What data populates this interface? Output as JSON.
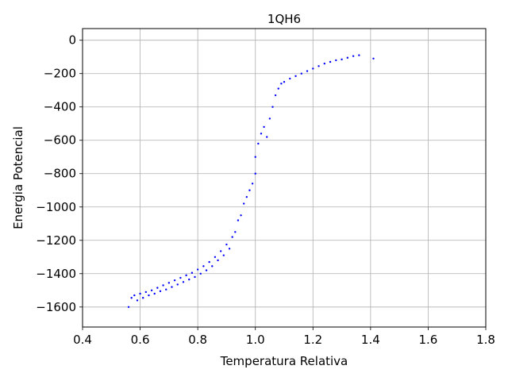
{
  "chart_data": {
    "type": "scatter",
    "title": "1QH6",
    "xlabel": "Temperatura Relativa",
    "ylabel": "Energia Potencial",
    "xlim": [
      0.4,
      1.8
    ],
    "ylim": [
      -1720,
      70
    ],
    "xticks": [
      0.4,
      0.6,
      0.8,
      1.0,
      1.2,
      1.4,
      1.6,
      1.8
    ],
    "xtick_labels": [
      "0.4",
      "0.6",
      "0.8",
      "1.0",
      "1.2",
      "1.4",
      "1.6",
      "1.8"
    ],
    "yticks": [
      0,
      -200,
      -400,
      -600,
      -800,
      -1000,
      -1200,
      -1400,
      -1600
    ],
    "ytick_labels": [
      "0",
      "−200",
      "−400",
      "−600",
      "−800",
      "−1000",
      "−1200",
      "−1400",
      "−1600"
    ],
    "grid": true,
    "marker_color": "#0000ff",
    "series": [
      {
        "points": [
          [
            0.56,
            -1600
          ],
          [
            0.57,
            -1545
          ],
          [
            0.58,
            -1530
          ],
          [
            0.59,
            -1560
          ],
          [
            0.6,
            -1520
          ],
          [
            0.61,
            -1545
          ],
          [
            0.62,
            -1510
          ],
          [
            0.63,
            -1530
          ],
          [
            0.64,
            -1500
          ],
          [
            0.65,
            -1520
          ],
          [
            0.66,
            -1485
          ],
          [
            0.67,
            -1505
          ],
          [
            0.68,
            -1470
          ],
          [
            0.69,
            -1495
          ],
          [
            0.7,
            -1455
          ],
          [
            0.71,
            -1480
          ],
          [
            0.72,
            -1440
          ],
          [
            0.73,
            -1465
          ],
          [
            0.74,
            -1425
          ],
          [
            0.75,
            -1450
          ],
          [
            0.76,
            -1410
          ],
          [
            0.77,
            -1435
          ],
          [
            0.78,
            -1395
          ],
          [
            0.79,
            -1420
          ],
          [
            0.8,
            -1375
          ],
          [
            0.81,
            -1400
          ],
          [
            0.82,
            -1355
          ],
          [
            0.83,
            -1380
          ],
          [
            0.84,
            -1330
          ],
          [
            0.85,
            -1355
          ],
          [
            0.86,
            -1300
          ],
          [
            0.87,
            -1320
          ],
          [
            0.88,
            -1265
          ],
          [
            0.89,
            -1290
          ],
          [
            0.9,
            -1225
          ],
          [
            0.91,
            -1250
          ],
          [
            0.92,
            -1180
          ],
          [
            0.93,
            -1150
          ],
          [
            0.94,
            -1080
          ],
          [
            0.95,
            -1050
          ],
          [
            0.96,
            -980
          ],
          [
            0.97,
            -940
          ],
          [
            0.98,
            -900
          ],
          [
            0.99,
            -860
          ],
          [
            1.0,
            -800
          ],
          [
            1.0,
            -700
          ],
          [
            1.01,
            -620
          ],
          [
            1.02,
            -560
          ],
          [
            1.03,
            -520
          ],
          [
            1.04,
            -580
          ],
          [
            1.05,
            -470
          ],
          [
            1.06,
            -400
          ],
          [
            1.07,
            -330
          ],
          [
            1.08,
            -290
          ],
          [
            1.09,
            -260
          ],
          [
            1.1,
            -250
          ],
          [
            1.12,
            -230
          ],
          [
            1.14,
            -215
          ],
          [
            1.16,
            -200
          ],
          [
            1.18,
            -185
          ],
          [
            1.2,
            -170
          ],
          [
            1.22,
            -155
          ],
          [
            1.24,
            -140
          ],
          [
            1.26,
            -130
          ],
          [
            1.28,
            -120
          ],
          [
            1.3,
            -115
          ],
          [
            1.32,
            -105
          ],
          [
            1.34,
            -95
          ],
          [
            1.36,
            -90
          ],
          [
            1.41,
            -110
          ]
        ]
      }
    ]
  }
}
